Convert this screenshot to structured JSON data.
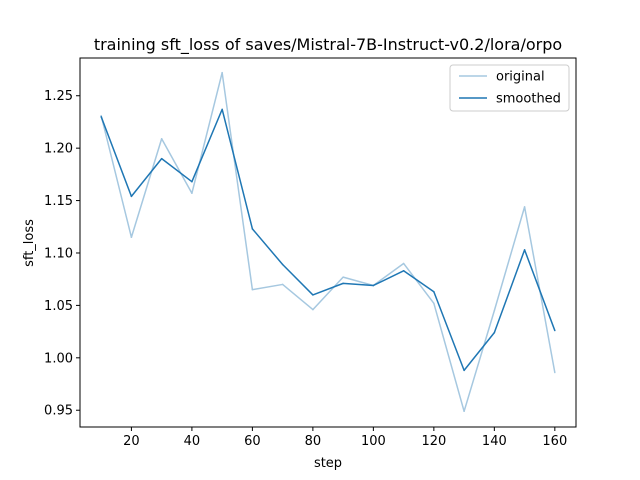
{
  "chart_data": {
    "type": "line",
    "title": "training sft_loss of saves/Mistral-7B-Instruct-v0.2/lora/orpo",
    "xlabel": "step",
    "ylabel": "sft_loss",
    "xlim": [
      3,
      167
    ],
    "ylim": [
      0.934,
      1.286
    ],
    "xticks": [
      20,
      40,
      60,
      80,
      100,
      120,
      140,
      160
    ],
    "yticks": [
      0.95,
      1.0,
      1.05,
      1.1,
      1.15,
      1.2,
      1.25
    ],
    "ytick_labels": [
      "0.95",
      "1.00",
      "1.05",
      "1.10",
      "1.15",
      "1.20",
      "1.25"
    ],
    "x": [
      10,
      20,
      30,
      40,
      50,
      60,
      70,
      80,
      90,
      100,
      110,
      120,
      130,
      140,
      150,
      160
    ],
    "series": [
      {
        "name": "original",
        "color": "#a6c8e0",
        "values": [
          1.231,
          1.115,
          1.209,
          1.157,
          1.272,
          1.065,
          1.07,
          1.046,
          1.077,
          1.069,
          1.09,
          1.052,
          0.949,
          1.045,
          1.144,
          0.986
        ]
      },
      {
        "name": "smoothed",
        "color": "#1f77b4",
        "values": [
          1.23,
          1.154,
          1.19,
          1.168,
          1.237,
          1.123,
          1.089,
          1.06,
          1.071,
          1.069,
          1.083,
          1.063,
          0.988,
          1.024,
          1.103,
          1.026
        ]
      }
    ],
    "legend_position": "top-right",
    "grid": false
  }
}
